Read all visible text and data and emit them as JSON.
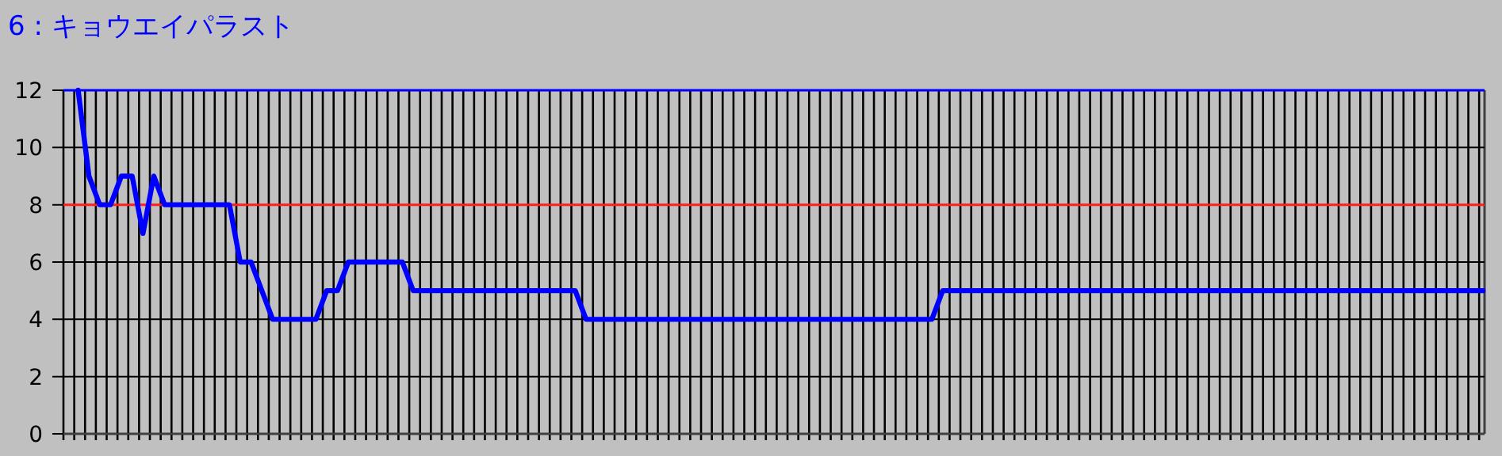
{
  "chart_data": {
    "type": "line",
    "title": "6 : キョウエイパラスト",
    "categories": [
      null,
      null,
      null,
      null,
      null,
      null,
      null,
      null,
      null,
      null,
      null,
      null,
      null,
      null,
      null,
      null,
      null,
      null,
      null,
      null,
      null,
      null,
      null,
      null,
      null,
      null,
      null,
      null,
      null,
      null,
      null,
      null,
      null,
      null,
      null,
      null,
      null,
      null,
      null,
      null,
      null,
      null,
      null,
      null,
      null,
      null,
      null,
      null,
      null,
      null,
      null,
      null,
      null,
      null,
      null,
      null,
      null,
      null,
      null,
      null,
      null,
      null,
      null,
      null,
      null,
      null,
      null,
      null,
      null,
      null,
      null,
      null,
      null,
      null,
      null,
      null,
      null,
      null,
      null,
      null,
      null,
      null,
      null,
      null,
      null,
      null,
      null,
      null,
      null,
      null,
      null,
      null,
      null,
      null,
      null,
      null,
      null,
      null,
      null,
      null,
      null,
      null,
      null,
      null,
      null,
      null,
      null,
      null,
      null,
      null,
      null,
      null,
      null,
      null,
      null,
      null,
      null,
      null,
      null,
      null,
      null,
      null,
      null,
      null,
      null,
      null,
      null,
      null,
      null,
      null,
      null
    ],
    "series": [
      {
        "color": "#0000ff",
        "values": [
          12,
          9,
          8,
          8,
          9,
          9,
          7,
          9,
          8,
          8,
          8,
          8,
          8,
          8,
          8,
          6,
          6,
          5,
          4,
          4,
          4,
          4,
          4,
          5,
          5,
          6,
          6,
          6,
          6,
          6,
          6,
          5,
          5,
          5,
          5,
          5,
          5,
          5,
          5,
          5,
          5,
          5,
          5,
          5,
          5,
          5,
          5,
          4,
          4,
          4,
          4,
          4,
          4,
          4,
          4,
          4,
          4,
          4,
          4,
          4,
          4,
          4,
          4,
          4,
          4,
          4,
          4,
          4,
          4,
          4,
          4,
          4,
          4,
          4,
          4,
          4,
          4,
          4,
          4,
          4,
          5,
          5,
          5,
          5,
          5,
          5,
          5,
          5,
          5,
          5,
          5,
          5,
          5,
          5,
          5,
          5,
          5,
          5,
          5,
          5,
          5,
          5,
          5,
          5,
          5,
          5,
          5,
          5,
          5,
          5,
          5,
          5,
          5,
          5,
          5,
          5,
          5,
          5,
          5,
          5,
          5,
          5,
          5,
          5,
          5,
          5,
          5,
          5,
          5,
          5,
          5
        ]
      }
    ],
    "ylim": [
      0,
      12
    ],
    "yticks": [
      0,
      2,
      4,
      6,
      8,
      10,
      12
    ],
    "ref_lines": [
      {
        "axis": "y",
        "value": 8,
        "color": "#ff2020"
      },
      {
        "axis": "y",
        "value": 12,
        "color": "#0000ff"
      }
    ],
    "grid": true,
    "tick_labels": "y",
    "marker": "none",
    "line_style": "solid"
  }
}
